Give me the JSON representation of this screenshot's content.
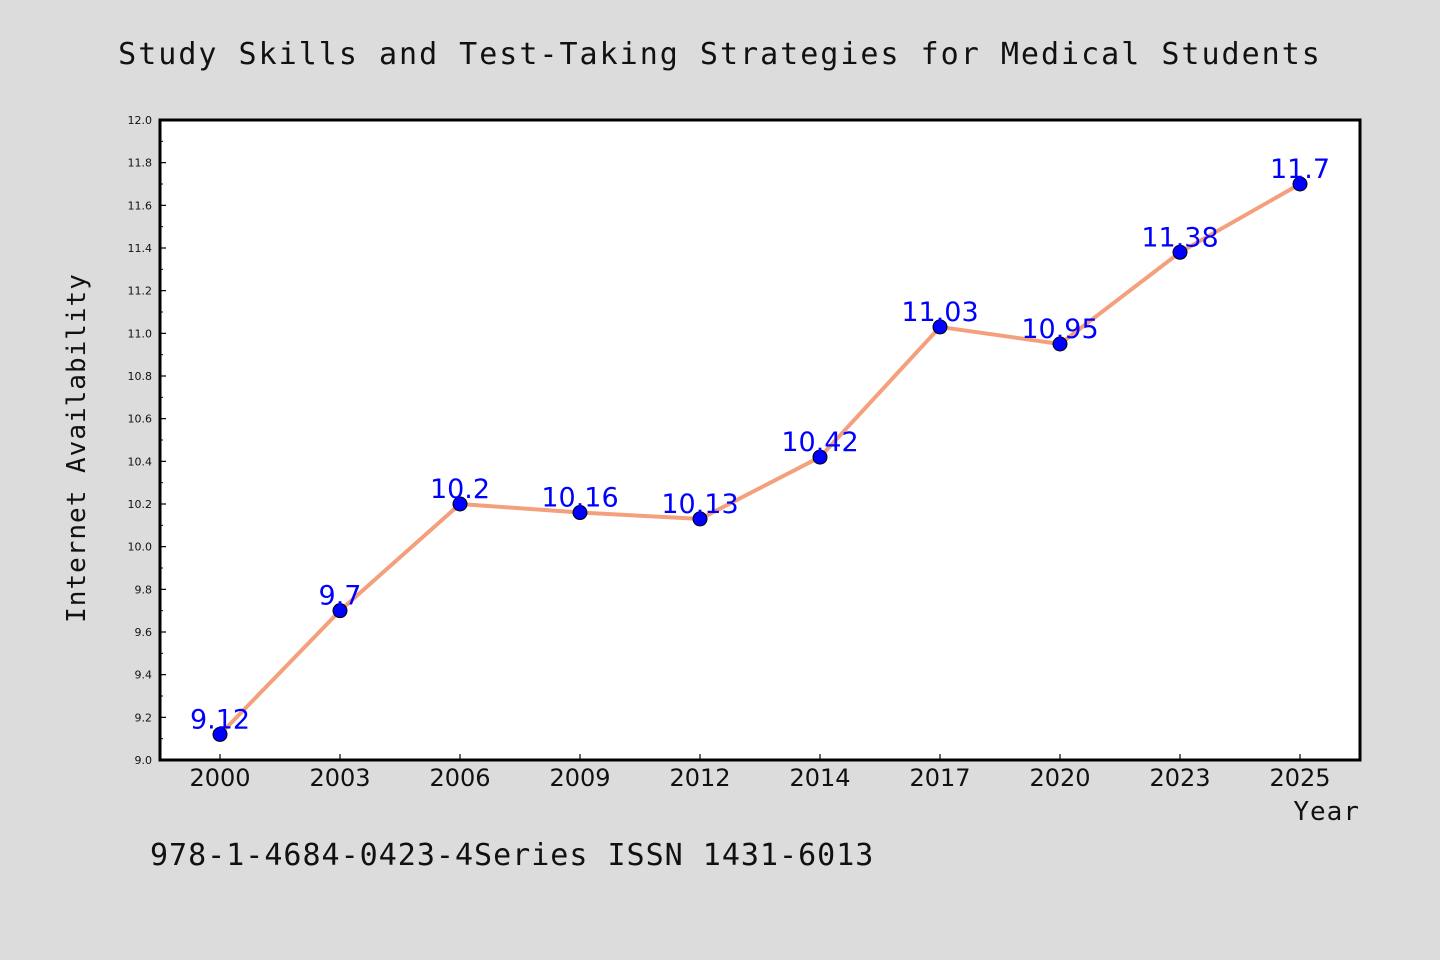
{
  "chart_data": {
    "type": "line",
    "title": "Study Skills and Test-Taking Strategies for Medical Students",
    "xlabel": "Year",
    "ylabel": "Internet Availability",
    "categories": [
      "2000",
      "2003",
      "2006",
      "2009",
      "2012",
      "2014",
      "2017",
      "2020",
      "2023",
      "2025"
    ],
    "series": [
      {
        "values": [
          9.12,
          9.7,
          10.2,
          10.16,
          10.13,
          10.42,
          11.03,
          10.95,
          11.38,
          11.7
        ],
        "line_color": "#f4a07c",
        "marker_color": "#0000ff"
      }
    ],
    "data_labels": [
      "9.12",
      "9.7",
      "10.2",
      "10.16",
      "10.13",
      "10.42",
      "11.03",
      "10.95",
      "11.38",
      "11.7"
    ],
    "ylim": [
      9.0,
      12.0
    ],
    "yticks": [
      "9.0",
      "9.2",
      "9.4",
      "9.6",
      "9.8",
      "10.0",
      "10.2",
      "10.4",
      "10.6",
      "10.8",
      "11.0",
      "11.2",
      "11.4",
      "11.6",
      "11.8",
      "12.0"
    ],
    "grid": false,
    "legend": "none",
    "background_color": "#dcdcdc",
    "plot_background": "#ffffff"
  },
  "footer": {
    "text": "978-1-4684-0423-4Series ISSN 1431-6013"
  }
}
